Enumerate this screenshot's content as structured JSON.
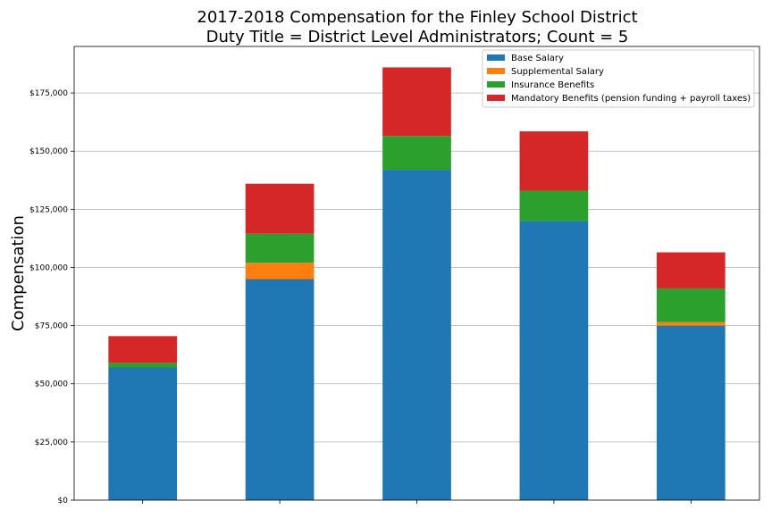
{
  "chart_data": {
    "type": "bar",
    "stacked": true,
    "title_line1": "2017-2018 Compensation for the Finley School District",
    "title_line2": "Duty Title = District Level Administrators; Count = 5",
    "xlabel": "",
    "ylabel": "Compensation",
    "ylim": [
      0,
      195000
    ],
    "yticks": [
      0,
      25000,
      50000,
      75000,
      100000,
      125000,
      150000,
      175000
    ],
    "ytick_labels": [
      "$0",
      "$25,000",
      "$50,000",
      "$75,000",
      "$100,000",
      "$125,000",
      "$150,000",
      "$175,000"
    ],
    "grid": "horizontal",
    "legend_position": "top-right",
    "categories": [
      "",
      "",
      "",
      "",
      ""
    ],
    "series": [
      {
        "name": "Base Salary",
        "color": "#1f77b4",
        "values": [
          57000,
          95000,
          142000,
          120000,
          75000
        ]
      },
      {
        "name": "Supplemental Salary",
        "color": "#ff7f0e",
        "values": [
          0,
          7000,
          0,
          0,
          1500
        ]
      },
      {
        "name": "Insurance Benefits",
        "color": "#2ca02c",
        "values": [
          2000,
          12500,
          14500,
          13000,
          14500
        ]
      },
      {
        "name": "Mandatory Benefits (pension funding + payroll taxes)",
        "color": "#d62728",
        "values": [
          11500,
          21500,
          29500,
          25500,
          15500
        ]
      }
    ]
  }
}
